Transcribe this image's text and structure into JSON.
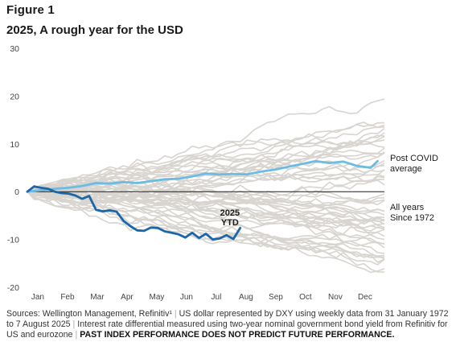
{
  "figure_label": "Figure 1",
  "title": "2025, A rough year for the USD",
  "footnote": {
    "sources": "Sources: Wellington Management, Refinitiv¹",
    "note1": "US dollar represented by DXY using weekly data from 31 January 1972 to 7 August 2025",
    "note2": "Interest rate differential measured using two-year nominal government bond yield from Refinitiv for US and eurozone",
    "disclaimer": "PAST INDEX PERFORMANCE DOES NOT PREDICT FUTURE PERFORMANCE."
  },
  "colors": {
    "background_series": "#d8d4cf",
    "post_covid": "#6cbbe3",
    "ytd_2025": "#1a66a8",
    "zero_line": "#1a1a1a",
    "axis_text": "#444444"
  },
  "chart_data": {
    "type": "line",
    "title": "2025, A rough year for the USD",
    "ylim": [
      -20,
      30
    ],
    "yticks": [
      -20,
      -10,
      0,
      10,
      20,
      30
    ],
    "x_categories": [
      "Jan",
      "Feb",
      "Mar",
      "Apr",
      "May",
      "Jun",
      "Jul",
      "Aug",
      "Sep",
      "Oct",
      "Nov",
      "Dec"
    ],
    "xlim": [
      0,
      52
    ],
    "annotations": {
      "post_covid": [
        "Post COVID",
        "average"
      ],
      "all_years": [
        "All years",
        "Since 1972"
      ],
      "ytd": [
        "2025",
        "YTD"
      ]
    },
    "series": [
      {
        "key": "post_covid",
        "label": "Post COVID average",
        "color": "#6cbbe3",
        "x": [
          0,
          2,
          4,
          6,
          8,
          10,
          12,
          14,
          16,
          18,
          20,
          22,
          24,
          26,
          28,
          30,
          32,
          34,
          36,
          38,
          40,
          42,
          44,
          46,
          48,
          50,
          51
        ],
        "y": [
          0,
          0.3,
          0.6,
          0.8,
          1.2,
          1.8,
          1.7,
          2.0,
          1.8,
          2.2,
          2.6,
          2.7,
          3.2,
          3.8,
          3.6,
          3.7,
          3.6,
          4.2,
          4.6,
          5.2,
          5.8,
          6.4,
          6.0,
          6.3,
          5.4,
          5.0,
          6.4
        ]
      },
      {
        "key": "ytd_2025",
        "label": "2025 YTD",
        "color": "#1a66a8",
        "x": [
          0,
          1,
          2,
          3,
          4,
          5,
          6,
          7,
          8,
          9,
          10,
          11,
          12,
          13,
          14,
          15,
          16,
          17,
          18,
          19,
          20,
          21,
          22,
          23,
          24,
          25,
          26,
          27,
          28,
          29,
          30,
          31
        ],
        "y": [
          0,
          1.1,
          0.8,
          0.6,
          0.0,
          -0.3,
          -0.4,
          -0.8,
          -1.5,
          -0.9,
          -3.8,
          -4.1,
          -3.9,
          -4.2,
          -6.1,
          -7.2,
          -8.1,
          -8.2,
          -7.5,
          -7.6,
          -8.3,
          -8.6,
          -8.9,
          -9.6,
          -8.6,
          -9.7,
          -8.8,
          -10.0,
          -9.8,
          -9.1,
          -9.9,
          -7.6
        ]
      }
    ],
    "background_series_count": 54
  }
}
